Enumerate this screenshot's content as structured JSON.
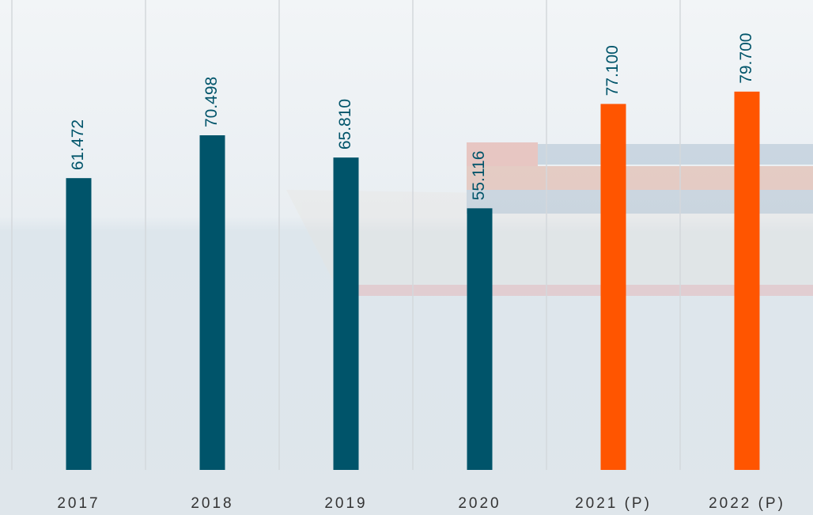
{
  "chart_data": {
    "type": "bar",
    "categories": [
      "2017",
      "2018",
      "2019",
      "2020",
      "2021 (P)",
      "2022 (P)"
    ],
    "values": [
      61.472,
      70.498,
      65.81,
      55.116,
      77.1,
      79.7
    ],
    "value_labels": [
      "61.472",
      "70.498",
      "65.810",
      "55.116",
      "77.100",
      "79.700"
    ],
    "colors": [
      "#00546a",
      "#00546a",
      "#00546a",
      "#00546a",
      "#ff5500",
      "#ff5500"
    ],
    "ylim": [
      0,
      99
    ]
  }
}
